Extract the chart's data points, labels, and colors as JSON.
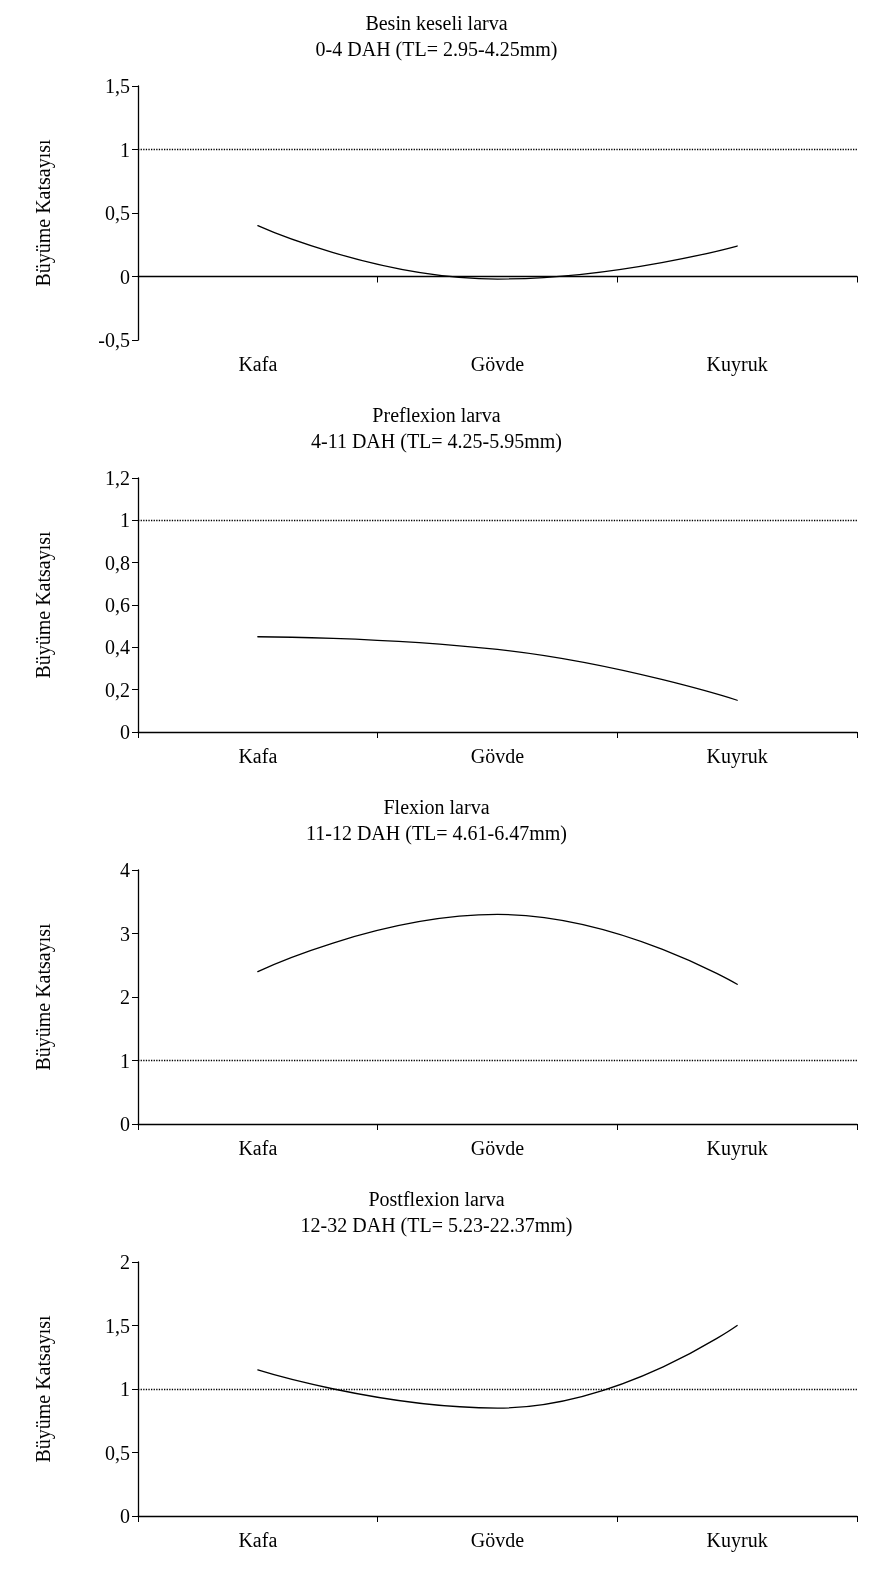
{
  "chart_data": [
    {
      "type": "line",
      "title": "Besin keseli larva",
      "subtitle": "0-4 DAH (TL= 2.95-4.25mm)",
      "ylabel": "Büyüme Katsayısı",
      "categories": [
        "Kafa",
        "Gövde",
        "Kuyruk"
      ],
      "values": [
        0.4,
        -0.02,
        0.24
      ],
      "color": "#000000",
      "ylim": [
        -0.5,
        1.5
      ],
      "yticks": [
        {
          "value": -0.5,
          "label": "-0,5"
        },
        0,
        {
          "value": 0.5,
          "label": "0,5"
        },
        1,
        {
          "value": 1.5,
          "label": "1,5"
        }
      ],
      "grid": false,
      "marker": "none",
      "line_style": "solid",
      "ref_lines": [
        {
          "axis": "y",
          "value": 1,
          "line_style": "dotted",
          "color": "#000000"
        }
      ]
    },
    {
      "type": "line",
      "title": "Preflexion larva",
      "subtitle": "4-11 DAH (TL= 4.25-5.95mm)",
      "ylabel": "Büyüme Katsayısı",
      "categories": [
        "Kafa",
        "Gövde",
        "Kuyruk"
      ],
      "values": [
        0.45,
        0.39,
        0.15
      ],
      "color": "#000000",
      "ylim": [
        0,
        1.2
      ],
      "yticks": [
        0,
        {
          "value": 0.2,
          "label": "0,2"
        },
        {
          "value": 0.4,
          "label": "0,4"
        },
        {
          "value": 0.6,
          "label": "0,6"
        },
        {
          "value": 0.8,
          "label": "0,8"
        },
        1,
        {
          "value": 1.2,
          "label": "1,2"
        }
      ],
      "grid": false,
      "marker": "none",
      "line_style": "solid",
      "ref_lines": [
        {
          "axis": "y",
          "value": 1,
          "line_style": "dotted",
          "color": "#000000"
        }
      ]
    },
    {
      "type": "line",
      "title": "Flexion larva",
      "subtitle": "11-12 DAH (TL= 4.61-6.47mm)",
      "ylabel": "Büyüme Katsayısı",
      "categories": [
        "Kafa",
        "Gövde",
        "Kuyruk"
      ],
      "values": [
        2.4,
        3.3,
        2.2
      ],
      "color": "#000000",
      "ylim": [
        0,
        4
      ],
      "yticks": [
        0,
        1,
        2,
        3,
        4
      ],
      "grid": false,
      "marker": "none",
      "line_style": "solid",
      "ref_lines": [
        {
          "axis": "y",
          "value": 1,
          "line_style": "dotted",
          "color": "#000000"
        }
      ]
    },
    {
      "type": "line",
      "title": "Postflexion larva",
      "subtitle": "12-32 DAH (TL= 5.23-22.37mm)",
      "ylabel": "Büyüme Katsayısı",
      "categories": [
        "Kafa",
        "Gövde",
        "Kuyruk"
      ],
      "values": [
        1.15,
        0.85,
        1.5
      ],
      "color": "#000000",
      "ylim": [
        0,
        2
      ],
      "yticks": [
        0,
        {
          "value": 0.5,
          "label": "0,5"
        },
        1,
        {
          "value": 1.5,
          "label": "1,5"
        },
        2
      ],
      "grid": false,
      "marker": "none",
      "line_style": "solid",
      "ref_lines": [
        {
          "axis": "y",
          "value": 1,
          "line_style": "dotted",
          "color": "#000000"
        }
      ]
    }
  ]
}
